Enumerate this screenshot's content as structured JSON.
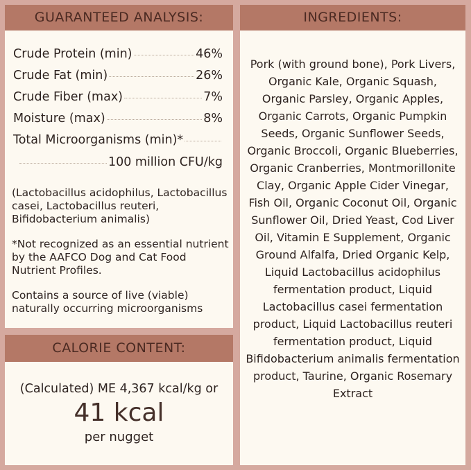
{
  "analysis": {
    "title": "GUARANTEED ANALYSIS:",
    "items": [
      {
        "label": "Crude Protein (min)",
        "value": "46%"
      },
      {
        "label": "Crude Fat (min)",
        "value": "26%"
      },
      {
        "label": "Crude Fiber (max)",
        "value": "7%"
      },
      {
        "label": "Moisture (max)",
        "value": "8%"
      }
    ],
    "microorganisms_label": "Total Microorganisms (min)*",
    "microorganisms_value": "100 million CFU/kg",
    "strains": "(Lactobacillus acidophilus, Lactobacillus casei, Lactobacillus reuteri, Bifidobacterium animalis)",
    "footnote": "*Not recognized as an essential nutrient by the AAFCO Dog and Cat Food Nutrient Profiles.",
    "live_note": "Contains a source of live (viable) naturally occurring microorganisms"
  },
  "calorie": {
    "title": "CALORIE CONTENT:",
    "line1": "(Calculated) ME 4,367 kcal/kg or",
    "big": "41 kcal",
    "line3": "per nugget"
  },
  "ingredients": {
    "title": "INGREDIENTS:",
    "text": "Pork (with ground bone), Pork Livers, Organic Kale, Organic Squash, Organic Parsley, Organic Apples, Organic Carrots, Organic Pumpkin Seeds, Organic Sunflower Seeds, Organic Broccoli, Organic Blueberries, Organic Cranberries, Montmorillonite Clay, Organic Apple Cider Vinegar, Fish Oil, Organic Coconut Oil, Organic Sunflower Oil, Dried Yeast, Cod Liver Oil, Vitamin E Supplement, Organic Ground Alfalfa, Dried Organic Kelp, Liquid Lactobacillus acidophilus fermentation product, Liquid Lactobacillus casei fermentation product, Liquid Lactobacillus reuteri fermentation product, Liquid Bifidobacterium animalis fermentation product, Taurine, Organic Rosemary Extract"
  },
  "colors": {
    "background": "#d5a99f",
    "header": "#b47866",
    "panel": "#fdf9f1",
    "header_text": "#4b2a22"
  }
}
